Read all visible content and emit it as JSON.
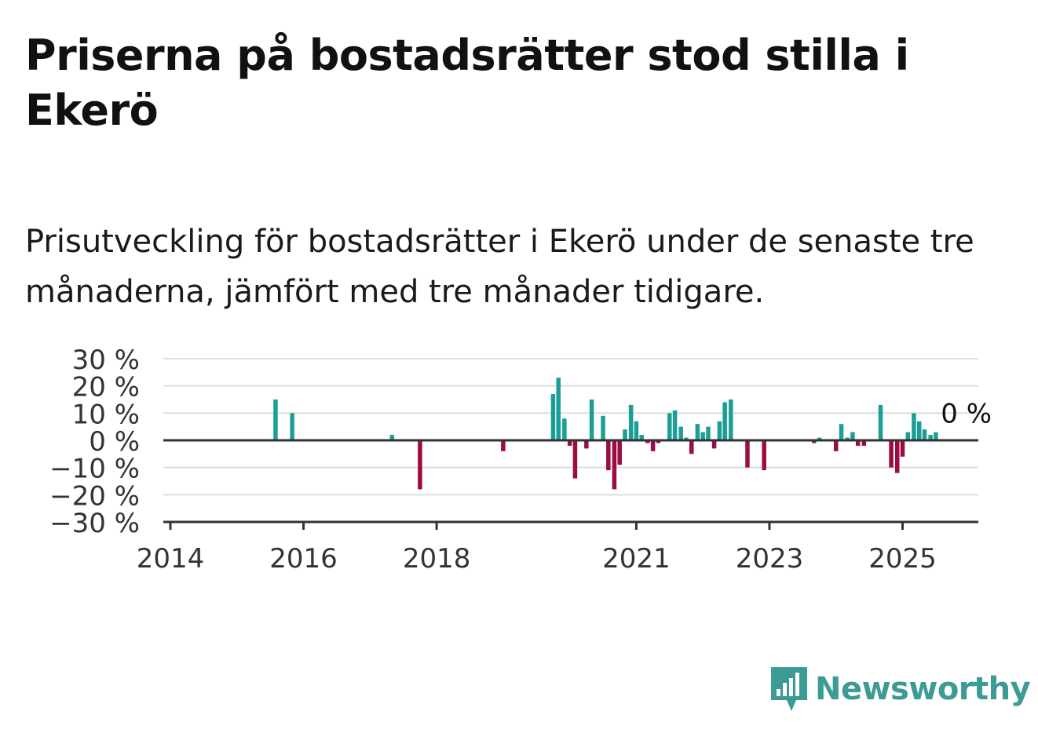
{
  "title": "Priserna på bostadsrätter stod stilla i Ekerö",
  "subtitle": "Prisutveckling för bostadsrätter i Ekerö under de senaste tre månaderna, jämfört med tre månader tidigare.",
  "logo_text": "Newsworthy",
  "colors": {
    "positive": "#1a9e96",
    "negative": "#9c0b43",
    "grid": "#dddddd",
    "axis": "#333333",
    "logo": "#3d9b95"
  },
  "chart_data": {
    "type": "bar",
    "title": "Priserna på bostadsrätter stod stilla i Ekerö",
    "ylim": [
      -30,
      30
    ],
    "y_ticks": [
      30,
      20,
      10,
      0,
      -10,
      -20,
      -30
    ],
    "y_tick_labels": [
      "30 %",
      "20 %",
      "10 %",
      "0 %",
      "−10 %",
      "−20 %",
      "−30 %"
    ],
    "x_ticks": [
      2014,
      2016,
      2018,
      2021,
      2023,
      2025
    ],
    "x_tick_labels": [
      "2014",
      "2016",
      "2018",
      "2021",
      "2023",
      "2025"
    ],
    "xlim": [
      2014.0,
      2026.2
    ],
    "grid": true,
    "annotation": "0 %",
    "bars": [
      {
        "x": 2015.58,
        "y": 15
      },
      {
        "x": 2015.83,
        "y": 10
      },
      {
        "x": 2017.33,
        "y": 2
      },
      {
        "x": 2017.75,
        "y": -18
      },
      {
        "x": 2019.0,
        "y": -4
      },
      {
        "x": 2019.75,
        "y": 17
      },
      {
        "x": 2019.83,
        "y": 23
      },
      {
        "x": 2019.92,
        "y": 8
      },
      {
        "x": 2020.0,
        "y": -2
      },
      {
        "x": 2020.08,
        "y": -14
      },
      {
        "x": 2020.25,
        "y": -3
      },
      {
        "x": 2020.33,
        "y": 15
      },
      {
        "x": 2020.5,
        "y": 9
      },
      {
        "x": 2020.58,
        "y": -11
      },
      {
        "x": 2020.67,
        "y": -18
      },
      {
        "x": 2020.75,
        "y": -9
      },
      {
        "x": 2020.83,
        "y": 4
      },
      {
        "x": 2020.92,
        "y": 13
      },
      {
        "x": 2021.0,
        "y": 7
      },
      {
        "x": 2021.08,
        "y": 2
      },
      {
        "x": 2021.17,
        "y": -1
      },
      {
        "x": 2021.25,
        "y": -4
      },
      {
        "x": 2021.33,
        "y": -1
      },
      {
        "x": 2021.5,
        "y": 10
      },
      {
        "x": 2021.58,
        "y": 11
      },
      {
        "x": 2021.67,
        "y": 5
      },
      {
        "x": 2021.75,
        "y": 1
      },
      {
        "x": 2021.83,
        "y": -5
      },
      {
        "x": 2021.92,
        "y": 6
      },
      {
        "x": 2022.0,
        "y": 3
      },
      {
        "x": 2022.08,
        "y": 5
      },
      {
        "x": 2022.17,
        "y": -3
      },
      {
        "x": 2022.25,
        "y": 7
      },
      {
        "x": 2022.33,
        "y": 14
      },
      {
        "x": 2022.42,
        "y": 15
      },
      {
        "x": 2022.67,
        "y": -10
      },
      {
        "x": 2022.92,
        "y": -11
      },
      {
        "x": 2023.67,
        "y": -1
      },
      {
        "x": 2023.75,
        "y": 1
      },
      {
        "x": 2024.0,
        "y": -4
      },
      {
        "x": 2024.08,
        "y": 6
      },
      {
        "x": 2024.17,
        "y": 1
      },
      {
        "x": 2024.25,
        "y": 3
      },
      {
        "x": 2024.33,
        "y": -2
      },
      {
        "x": 2024.42,
        "y": -2
      },
      {
        "x": 2024.67,
        "y": 13
      },
      {
        "x": 2024.83,
        "y": -10
      },
      {
        "x": 2024.92,
        "y": -12
      },
      {
        "x": 2025.0,
        "y": -6
      },
      {
        "x": 2025.08,
        "y": 3
      },
      {
        "x": 2025.17,
        "y": 10
      },
      {
        "x": 2025.25,
        "y": 7
      },
      {
        "x": 2025.33,
        "y": 4
      },
      {
        "x": 2025.42,
        "y": 2
      },
      {
        "x": 2025.5,
        "y": 3
      },
      {
        "x": 2025.58,
        "y": 0
      }
    ]
  }
}
